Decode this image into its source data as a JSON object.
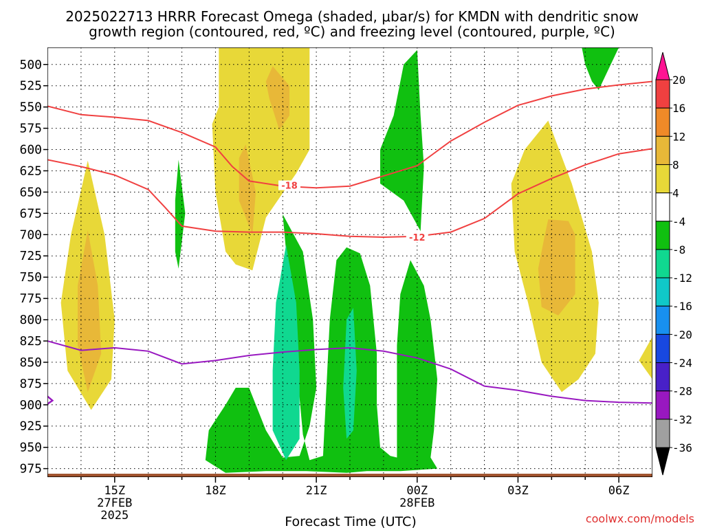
{
  "chart_data": {
    "type": "area",
    "title_line1": "2025022713 HRRR Forecast Omega (shaded, μbar/s) for KMDN with dendritic snow",
    "title_line2": "growth region (contoured, red, ºC) and freezing level (contoured, purple, ºC)",
    "xlabel": "Forecast Time (UTC)",
    "credit": "coolwx.com/models",
    "y_ticks": [
      500,
      525,
      550,
      575,
      600,
      625,
      650,
      675,
      700,
      725,
      750,
      775,
      800,
      825,
      850,
      875,
      900,
      925,
      950,
      975
    ],
    "y_range": [
      480,
      985
    ],
    "x_range_hours": [
      13,
      31
    ],
    "x_ticks": [
      {
        "hour": 15,
        "lines": [
          "15Z",
          "27FEB",
          "2025"
        ]
      },
      {
        "hour": 18,
        "lines": [
          "18Z"
        ]
      },
      {
        "hour": 21,
        "lines": [
          "21Z"
        ]
      },
      {
        "hour": 24,
        "lines": [
          "00Z",
          "28FEB"
        ]
      },
      {
        "hour": 27,
        "lines": [
          "03Z"
        ]
      },
      {
        "hour": 30,
        "lines": [
          "06Z"
        ]
      }
    ],
    "colorbar": {
      "labels": [
        "20",
        "16",
        "12",
        "8",
        "4",
        "-4",
        "-8",
        "-12",
        "-16",
        "-20",
        "-24",
        "-28",
        "-32",
        "-36"
      ],
      "colors": [
        "#ff1493",
        "#f04040",
        "#f08a28",
        "#e8b838",
        "#e8d838",
        "#ffffff",
        "#10c010",
        "#10d890",
        "#10c8c8",
        "#1890f0",
        "#1848e0",
        "#4820c8",
        "#9818c0",
        "#a0a0a0",
        "#000000"
      ]
    },
    "shading_colors": {
      "plus4": "#e8d838",
      "plus8": "#e8b838",
      "minus4": "#10c010",
      "minus8": "#10d890"
    },
    "contour_colors": {
      "dendritic": "#f04040",
      "freezing": "#9818c0",
      "terrain": "#a0522d"
    },
    "dendritic_contours": [
      {
        "label": "-18",
        "label_pos": [
          20.2,
          642
        ],
        "points": [
          [
            13,
            549
          ],
          [
            14,
            559
          ],
          [
            15,
            562
          ],
          [
            16,
            566
          ],
          [
            17,
            580
          ],
          [
            18,
            597
          ],
          [
            18.5,
            620
          ],
          [
            19,
            637
          ],
          [
            20,
            643
          ],
          [
            21,
            645
          ],
          [
            22,
            643
          ],
          [
            23,
            631
          ],
          [
            24,
            619
          ],
          [
            25,
            590
          ],
          [
            26,
            568
          ],
          [
            27,
            548
          ],
          [
            28,
            537
          ],
          [
            29,
            529
          ],
          [
            30,
            524
          ],
          [
            31,
            520
          ]
        ]
      },
      {
        "label": "-12",
        "label_pos": [
          24,
          703
        ],
        "points": [
          [
            13,
            612
          ],
          [
            14,
            620
          ],
          [
            15,
            630
          ],
          [
            16,
            647
          ],
          [
            16.5,
            668
          ],
          [
            17,
            690
          ],
          [
            18,
            696
          ],
          [
            19,
            697
          ],
          [
            20,
            697
          ],
          [
            21,
            699
          ],
          [
            22,
            702
          ],
          [
            23,
            703
          ],
          [
            24,
            702
          ],
          [
            25,
            697
          ],
          [
            26,
            681
          ],
          [
            27,
            652
          ],
          [
            28,
            634
          ],
          [
            29,
            618
          ],
          [
            30,
            605
          ],
          [
            31,
            599
          ]
        ]
      }
    ],
    "freezing_contour": {
      "points": [
        [
          13,
          825
        ],
        [
          14,
          836
        ],
        [
          15,
          833
        ],
        [
          16,
          837
        ],
        [
          17,
          852
        ],
        [
          18,
          848
        ],
        [
          19,
          842
        ],
        [
          20,
          838
        ],
        [
          21,
          835
        ],
        [
          22,
          833
        ],
        [
          23,
          837
        ],
        [
          24,
          845
        ],
        [
          25,
          858
        ],
        [
          26,
          878
        ],
        [
          27,
          883
        ],
        [
          28,
          890
        ],
        [
          29,
          895
        ],
        [
          30,
          897
        ],
        [
          31,
          898
        ]
      ],
      "stub": [
        [
          13,
          890
        ],
        [
          13.15,
          895
        ],
        [
          13,
          899
        ]
      ]
    },
    "omega_regions": [
      {
        "level": "plus4",
        "points": [
          [
            14.2,
            613
          ],
          [
            14.7,
            700
          ],
          [
            15,
            800
          ],
          [
            14.9,
            870
          ],
          [
            14.3,
            906
          ],
          [
            13.6,
            860
          ],
          [
            13.4,
            780
          ],
          [
            13.7,
            700
          ]
        ]
      },
      {
        "level": "plus8",
        "points": [
          [
            14.2,
            695
          ],
          [
            14.5,
            760
          ],
          [
            14.6,
            840
          ],
          [
            14.2,
            885
          ],
          [
            13.9,
            830
          ],
          [
            13.9,
            760
          ]
        ]
      },
      {
        "level": "plus4",
        "points": [
          [
            18.1,
            480
          ],
          [
            18.4,
            480
          ],
          [
            18.6,
            480
          ],
          [
            19.6,
            480
          ],
          [
            20.3,
            480
          ],
          [
            20.8,
            480
          ],
          [
            20.8,
            600
          ],
          [
            20.4,
            628
          ],
          [
            19.5,
            680
          ],
          [
            19.1,
            742
          ],
          [
            18.6,
            735
          ],
          [
            18.3,
            720
          ],
          [
            18,
            650
          ],
          [
            17.9,
            570
          ],
          [
            18.1,
            550
          ]
        ]
      },
      {
        "level": "plus8",
        "points": [
          [
            18.9,
            594
          ],
          [
            19.2,
            650
          ],
          [
            19.1,
            700
          ],
          [
            18.7,
            660
          ],
          [
            18.7,
            610
          ]
        ]
      },
      {
        "level": "plus8",
        "points": [
          [
            19.7,
            502
          ],
          [
            20.2,
            525
          ],
          [
            20.2,
            560
          ],
          [
            19.9,
            577
          ],
          [
            19.6,
            540
          ],
          [
            19.5,
            520
          ]
        ]
      },
      {
        "level": "plus4",
        "points": [
          [
            27.9,
            566
          ],
          [
            28.6,
            640
          ],
          [
            29.2,
            720
          ],
          [
            29.4,
            780
          ],
          [
            29.3,
            840
          ],
          [
            28.8,
            870
          ],
          [
            28.3,
            885
          ],
          [
            27.7,
            850
          ],
          [
            27.3,
            780
          ],
          [
            26.9,
            720
          ],
          [
            26.8,
            640
          ],
          [
            27.2,
            600
          ]
        ]
      },
      {
        "level": "plus8",
        "points": [
          [
            27.9,
            682
          ],
          [
            28.5,
            684
          ],
          [
            28.7,
            700
          ],
          [
            28.7,
            770
          ],
          [
            28.2,
            795
          ],
          [
            27.7,
            785
          ],
          [
            27.6,
            740
          ],
          [
            27.8,
            700
          ]
        ]
      },
      {
        "level": "plus4",
        "points": [
          [
            31,
            820
          ],
          [
            30.6,
            848
          ],
          [
            31,
            870
          ]
        ]
      },
      {
        "level": "minus4",
        "points": [
          [
            16.9,
            612
          ],
          [
            17.1,
            675
          ],
          [
            16.9,
            740
          ],
          [
            16.8,
            720
          ],
          [
            16.8,
            660
          ]
        ]
      },
      {
        "level": "minus4",
        "points": [
          [
            20,
            676
          ],
          [
            20.6,
            720
          ],
          [
            20.9,
            800
          ],
          [
            21,
            880
          ],
          [
            20.8,
            925
          ],
          [
            20.5,
            960
          ],
          [
            20,
            962
          ],
          [
            19.5,
            930
          ],
          [
            19,
            880
          ],
          [
            18.6,
            880
          ],
          [
            18.3,
            900
          ],
          [
            17.8,
            930
          ],
          [
            17.7,
            965
          ],
          [
            18.3,
            980
          ],
          [
            19.5,
            978
          ],
          [
            20.7,
            978
          ],
          [
            21.9,
            980
          ],
          [
            22.5,
            978
          ],
          [
            23.5,
            978
          ],
          [
            24.6,
            975
          ],
          [
            24.4,
            962
          ],
          [
            24.5,
            930
          ],
          [
            24.6,
            870
          ],
          [
            24.4,
            800
          ],
          [
            24.2,
            760
          ],
          [
            23.8,
            730
          ],
          [
            23.5,
            770
          ],
          [
            23.4,
            830
          ],
          [
            23.4,
            900
          ],
          [
            23.4,
            962
          ],
          [
            23.2,
            960
          ],
          [
            22.9,
            950
          ],
          [
            22.8,
            900
          ],
          [
            22.8,
            840
          ],
          [
            22.6,
            760
          ],
          [
            22.3,
            722
          ],
          [
            21.9,
            715
          ],
          [
            21.6,
            730
          ],
          [
            21.4,
            800
          ],
          [
            21.3,
            880
          ],
          [
            21.2,
            960
          ],
          [
            20.8,
            965
          ],
          [
            20.6,
            935
          ]
        ]
      },
      {
        "level": "minus8",
        "points": [
          [
            20.1,
            712
          ],
          [
            20.4,
            780
          ],
          [
            20.5,
            860
          ],
          [
            20.5,
            940
          ],
          [
            20.1,
            965
          ],
          [
            19.7,
            930
          ],
          [
            19.7,
            860
          ],
          [
            19.8,
            780
          ]
        ]
      },
      {
        "level": "minus8",
        "points": [
          [
            22.1,
            786
          ],
          [
            22.2,
            860
          ],
          [
            22.1,
            930
          ],
          [
            21.9,
            940
          ],
          [
            21.8,
            880
          ],
          [
            21.9,
            800
          ]
        ]
      },
      {
        "level": "minus4",
        "points": [
          [
            24,
            483
          ],
          [
            24.1,
            560
          ],
          [
            24.2,
            620
          ],
          [
            24.1,
            696
          ],
          [
            23.6,
            660
          ],
          [
            22.9,
            640
          ],
          [
            22.9,
            600
          ],
          [
            23.3,
            560
          ],
          [
            23.6,
            500
          ]
        ]
      },
      {
        "level": "minus4",
        "points": [
          [
            29.8,
            480
          ],
          [
            30,
            480
          ],
          [
            29.4,
            530
          ],
          [
            29.2,
            520
          ],
          [
            29,
            500
          ],
          [
            28.9,
            480
          ]
        ]
      }
    ],
    "terrain_top_hpa": 981
  }
}
